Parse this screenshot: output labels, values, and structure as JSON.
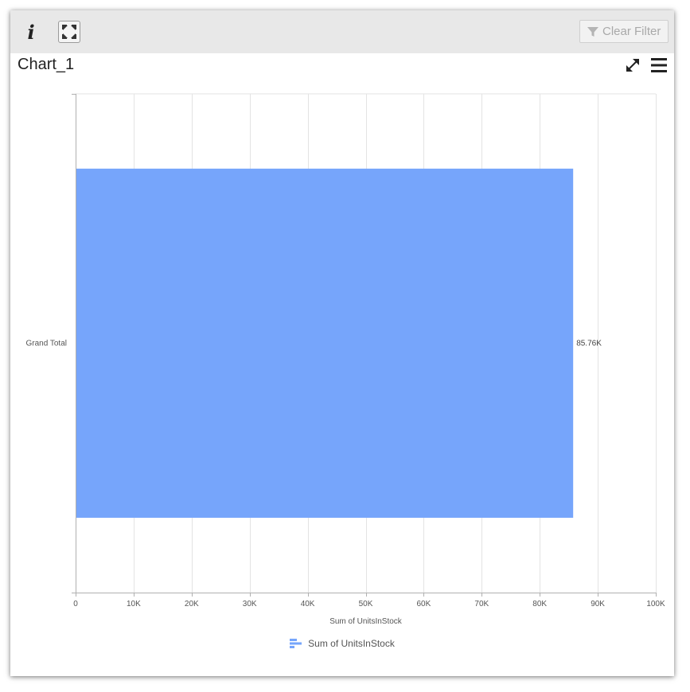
{
  "toolbar": {
    "info_glyph": "i",
    "info_icon": "info-icon",
    "expand_icon": "expand-icon",
    "clear_filter_label": "Clear Filter",
    "clear_filter_icon": "filter-icon"
  },
  "widget": {
    "title": "Chart_1",
    "fullscreen_icon": "fullscreen-icon",
    "menu_icon": "menu-icon"
  },
  "colors": {
    "bar": "#76a5fb",
    "toolbar_bg": "#e8e8e8",
    "gridline": "#e3e3e3",
    "axis": "#b0b0b0",
    "text": "#555555"
  },
  "chart_data": {
    "type": "bar",
    "orientation": "horizontal",
    "categories": [
      "Grand Total"
    ],
    "series": [
      {
        "name": "Sum of UnitsInStock",
        "values": [
          85760
        ],
        "data_labels": [
          "85.76K"
        ]
      }
    ],
    "xlabel": "Sum of UnitsInStock",
    "ylabel": "",
    "xlim": [
      0,
      100000
    ],
    "x_ticks": [
      0,
      10000,
      20000,
      30000,
      40000,
      50000,
      60000,
      70000,
      80000,
      90000,
      100000
    ],
    "x_tick_labels": [
      "0",
      "10K",
      "20K",
      "30K",
      "40K",
      "50K",
      "60K",
      "70K",
      "80K",
      "90K",
      "100K"
    ],
    "grid": true,
    "legend_position": "bottom"
  }
}
